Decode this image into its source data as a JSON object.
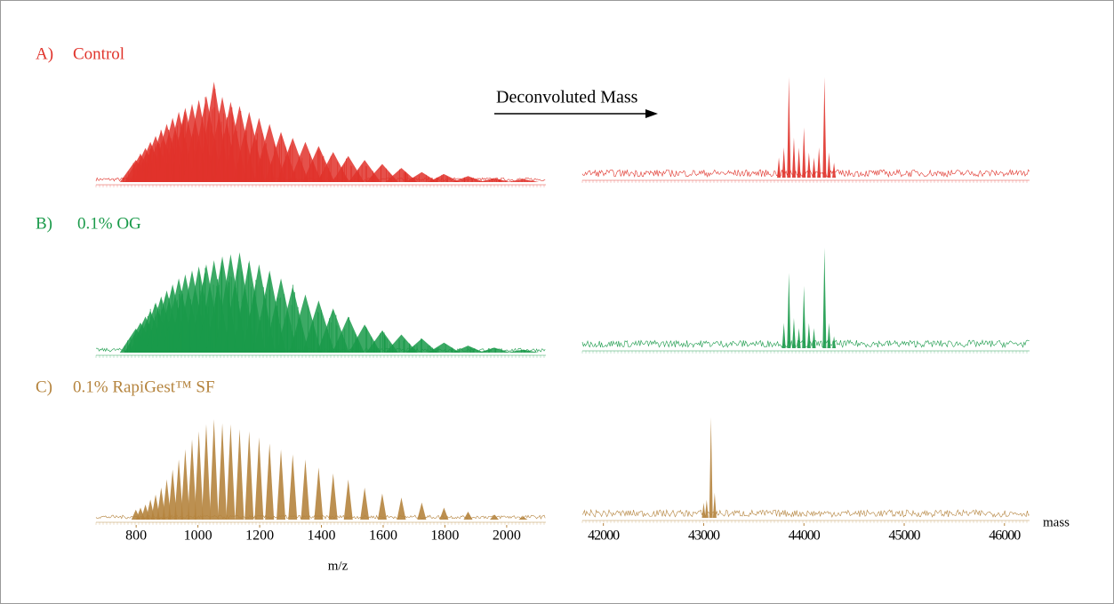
{
  "chart_data": [
    {
      "type": "spectrum",
      "xlabel": "m/z",
      "panel_labels": [
        "A)",
        "B)",
        "C)"
      ],
      "xlim": [
        670,
        2127
      ],
      "xticks": [
        800,
        1000,
        1200,
        1400,
        1600,
        1800,
        2000
      ],
      "ylim": [
        0,
        100
      ],
      "x": [
        799,
        814,
        830,
        846,
        863,
        881,
        899,
        918,
        938,
        959,
        981,
        1003,
        1027,
        1052,
        1079,
        1106,
        1135,
        1166,
        1198,
        1232,
        1269,
        1307,
        1348,
        1391,
        1438,
        1487,
        1540,
        1597,
        1659,
        1725,
        1797,
        1875,
        1960,
        2053
      ],
      "series": [
        {
          "name": "Control",
          "color": "#e0332b",
          "values": [
            22,
            28,
            34,
            40,
            46,
            52,
            58,
            64,
            70,
            74,
            78,
            82,
            86,
            100,
            85,
            80,
            76,
            70,
            64,
            58,
            50,
            44,
            40,
            36,
            30,
            26,
            22,
            18,
            14,
            10,
            8,
            6,
            4,
            3
          ]
        },
        {
          "name": "0.1% OG",
          "color": "#1a9a4a",
          "values": [
            24,
            30,
            36,
            42,
            50,
            56,
            62,
            68,
            74,
            78,
            82,
            86,
            88,
            92,
            96,
            98,
            100,
            92,
            88,
            82,
            74,
            66,
            58,
            52,
            44,
            36,
            28,
            22,
            18,
            14,
            10,
            7,
            5,
            3
          ]
        },
        {
          "name": "0.1% RapiGest™ SF",
          "color": "#b5843e",
          "values": [
            10,
            12,
            15,
            20,
            25,
            32,
            40,
            50,
            60,
            70,
            80,
            88,
            95,
            100,
            96,
            95,
            90,
            88,
            82,
            76,
            70,
            65,
            60,
            52,
            46,
            40,
            32,
            26,
            22,
            17,
            12,
            8,
            5,
            3
          ]
        }
      ]
    },
    {
      "type": "spectrum",
      "xlabel": "mass",
      "annotation": "Deconvoluted Mass",
      "xlim": [
        41790,
        46250
      ],
      "xticks": [
        42000,
        43000,
        44000,
        45000,
        46000
      ],
      "ylim": [
        0,
        100
      ],
      "series": [
        {
          "name": "Control",
          "color": "#e0332b",
          "x": [
            43750,
            43800,
            43850,
            43900,
            43950,
            44000,
            44050,
            44100,
            44150,
            44205,
            44250,
            44300
          ],
          "values": [
            20,
            30,
            100,
            40,
            30,
            50,
            25,
            20,
            30,
            100,
            25,
            15
          ]
        },
        {
          "name": "0.1% OG",
          "color": "#1a9a4a",
          "x": [
            43800,
            43850,
            43900,
            43950,
            44000,
            44050,
            44100,
            44205,
            44250,
            44300
          ],
          "values": [
            25,
            75,
            30,
            20,
            62,
            25,
            20,
            100,
            25,
            12
          ]
        },
        {
          "name": "0.1% RapiGest™ SF",
          "color": "#b5843e",
          "x": [
            43000,
            43030,
            43073,
            43110
          ],
          "values": [
            15,
            18,
            100,
            25
          ]
        }
      ]
    }
  ]
}
